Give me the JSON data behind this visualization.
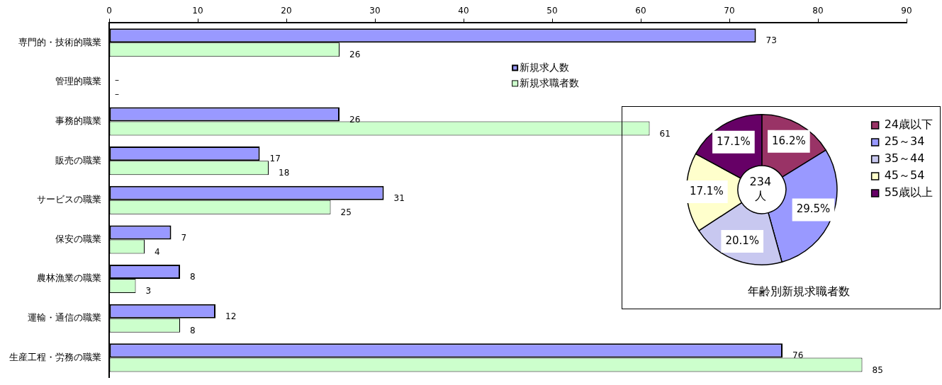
{
  "chart_data": [
    {
      "type": "bar",
      "orientation": "horizontal",
      "categories": [
        "専門的・技術的職業",
        "管理的職業",
        "事務的職業",
        "販売の職業",
        "サービスの職業",
        "保安の職業",
        "農林漁業の職業",
        "運輸・通信の職業",
        "生産工程・労務の職業"
      ],
      "series": [
        {
          "name": "新規求人数",
          "color": "#9999ff",
          "values": [
            73,
            null,
            26,
            17,
            31,
            7,
            8,
            12,
            76
          ],
          "value_labels": [
            "73",
            "–",
            "26",
            "17",
            "31",
            "7",
            "8",
            "12",
            "76"
          ]
        },
        {
          "name": "新規求職者数",
          "color": "#ccffcc",
          "values": [
            26,
            null,
            61,
            18,
            25,
            4,
            3,
            8,
            85
          ],
          "value_labels": [
            "26",
            "–",
            "61",
            "18",
            "25",
            "4",
            "3",
            "8",
            "85"
          ]
        }
      ],
      "xlim": [
        0,
        90
      ],
      "xticks": [
        0,
        10,
        20,
        30,
        40,
        50,
        60,
        70,
        80,
        90
      ],
      "grid": false,
      "legend": "top"
    },
    {
      "type": "donut",
      "title": "年齢別新規求職者数",
      "categories": [
        "24歳以下",
        "25～34",
        "35～44",
        "45～54",
        "55歳以上"
      ],
      "values": [
        16.2,
        29.5,
        20.1,
        17.1,
        17.1
      ],
      "colors": [
        "#993366",
        "#9999ff",
        "#c8c8f0",
        "#ffffcc",
        "#660066"
      ],
      "value_labels": [
        "16.2%",
        "29.5%",
        "20.1%",
        "17.1%",
        "17.1%"
      ],
      "annotations": [
        "234 人"
      ],
      "legend": "top right"
    }
  ]
}
